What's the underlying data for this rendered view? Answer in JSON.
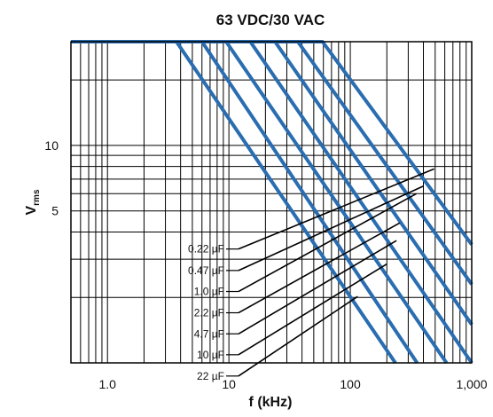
{
  "chart_data": {
    "type": "line",
    "title": "63 VDC/30 VAC",
    "xlabel": "f (kHz)",
    "ylabel": "V",
    "ylabel_sub": "rms",
    "x_scale": "log",
    "y_scale": "log",
    "xlim": [
      0.5,
      1000
    ],
    "ylim": [
      1,
      30
    ],
    "x_ticks": [
      {
        "value": 1,
        "label": "1.0"
      },
      {
        "value": 10,
        "label": "10"
      },
      {
        "value": 100,
        "label": "100"
      },
      {
        "value": 1000,
        "label": "1,000"
      }
    ],
    "y_ticks": [
      {
        "value": 10,
        "label": "10"
      },
      {
        "value": 5,
        "label": "5"
      }
    ],
    "grid": true,
    "line_color": "#2a6db0",
    "series": [
      {
        "name": "0.22 µF",
        "points": [
          [
            0.5,
            30
          ],
          [
            59,
            30
          ],
          [
            1000,
            3.5
          ]
        ]
      },
      {
        "name": "0.47 µF",
        "points": [
          [
            0.5,
            30
          ],
          [
            37,
            30
          ],
          [
            1000,
            2.3
          ]
        ]
      },
      {
        "name": "1.0 µF",
        "points": [
          [
            0.5,
            30
          ],
          [
            24,
            30
          ],
          [
            1000,
            1.5
          ]
        ]
      },
      {
        "name": "2.2 µF",
        "points": [
          [
            0.5,
            30
          ],
          [
            15,
            30
          ],
          [
            1000,
            1
          ]
        ]
      },
      {
        "name": "4.7 µF",
        "points": [
          [
            0.5,
            30
          ],
          [
            9.5,
            30
          ],
          [
            620,
            1
          ]
        ]
      },
      {
        "name": "10 µF",
        "points": [
          [
            0.5,
            30
          ],
          [
            6,
            30
          ],
          [
            355,
            1
          ]
        ]
      },
      {
        "name": "22 µF",
        "points": [
          [
            0.5,
            30
          ],
          [
            3.7,
            30
          ],
          [
            235,
            1
          ]
        ]
      }
    ],
    "annotations": [
      {
        "text": "0.22 µF",
        "label_f": 12,
        "label_v": 3.34,
        "end_f": 490,
        "end_v": 7.8
      },
      {
        "text": "0.47 µF",
        "label_f": 12,
        "label_v": 2.66,
        "end_f": 400,
        "end_v": 6.5
      },
      {
        "text": "1.0 µF",
        "label_f": 12,
        "label_v": 2.13,
        "end_f": 350,
        "end_v": 6.0
      },
      {
        "text": "2.2 µF",
        "label_f": 12,
        "label_v": 1.7,
        "end_f": 255,
        "end_v": 4.4
      },
      {
        "text": "4.7 µF",
        "label_f": 12,
        "label_v": 1.36,
        "end_f": 240,
        "end_v": 3.65
      },
      {
        "text": "10 µF",
        "label_f": 12,
        "label_v": 1.09,
        "end_f": 200,
        "end_v": 2.85
      },
      {
        "text": "22 µF",
        "label_f": 12,
        "label_v": 0.87,
        "end_f": 115,
        "end_v": 2.02
      }
    ]
  }
}
